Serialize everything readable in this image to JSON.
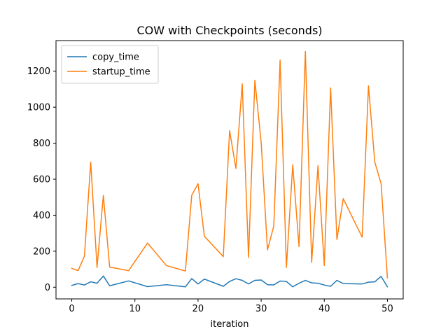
{
  "chart_data": {
    "type": "line",
    "title": "COW with Checkpoints (seconds)",
    "xlabel": "iteration",
    "ylabel": "",
    "xlim": [
      -2.5,
      52.5
    ],
    "ylim": [
      -65,
      1370
    ],
    "xticks": [
      0,
      10,
      20,
      30,
      40,
      50
    ],
    "yticks": [
      0,
      200,
      400,
      600,
      800,
      1000,
      1200
    ],
    "grid": false,
    "legend_position": "top-left",
    "series": [
      {
        "name": "copy_time",
        "color": "#1f77b4",
        "x": [
          0,
          1,
          2,
          3,
          4,
          5,
          6,
          9,
          12,
          15,
          18,
          19,
          20,
          21,
          24,
          25,
          26,
          27,
          28,
          29,
          30,
          31,
          32,
          33,
          34,
          35,
          36,
          37,
          38,
          39,
          40,
          41,
          42,
          43,
          46,
          47,
          48,
          49,
          50
        ],
        "y": [
          10,
          20,
          12,
          30,
          22,
          62,
          8,
          35,
          3,
          14,
          2,
          48,
          18,
          45,
          5,
          32,
          47,
          38,
          18,
          38,
          40,
          14,
          13,
          34,
          32,
          2,
          22,
          38,
          24,
          22,
          12,
          5,
          38,
          20,
          18,
          28,
          30,
          60,
          2
        ]
      },
      {
        "name": "startup_time",
        "color": "#ff7f0e",
        "x": [
          0,
          1,
          2,
          3,
          4,
          5,
          6,
          9,
          12,
          15,
          18,
          19,
          20,
          21,
          24,
          25,
          26,
          27,
          28,
          29,
          30,
          31,
          32,
          33,
          34,
          35,
          36,
          37,
          38,
          39,
          40,
          41,
          42,
          43,
          46,
          47,
          48,
          49,
          50
        ],
        "y": [
          105,
          92,
          172,
          695,
          110,
          510,
          112,
          92,
          245,
          120,
          90,
          510,
          575,
          283,
          170,
          870,
          660,
          1130,
          165,
          1150,
          805,
          207,
          340,
          1262,
          110,
          680,
          225,
          1310,
          138,
          675,
          120,
          1107,
          265,
          492,
          278,
          1118,
          695,
          575,
          52
        ]
      }
    ]
  }
}
